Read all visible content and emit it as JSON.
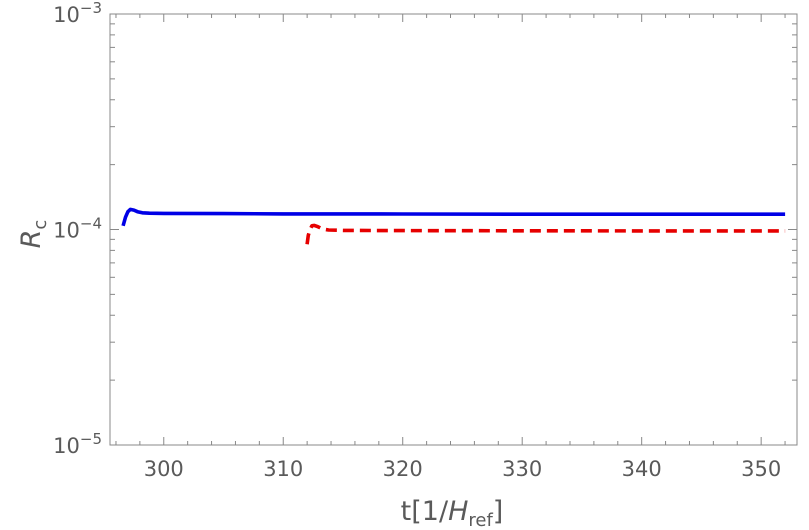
{
  "chart_data": {
    "type": "line",
    "xlabel": {
      "main": "t[1/",
      "var": "H",
      "sub": "ref",
      "close": "]"
    },
    "ylabel": {
      "var": "R",
      "sub": "c"
    },
    "xlim": [
      295.5,
      353
    ],
    "ylim": [
      1e-05,
      0.001
    ],
    "yscale": "log",
    "x_ticks": [
      300,
      310,
      320,
      330,
      340,
      350
    ],
    "x_tick_labels": [
      "300",
      "310",
      "320",
      "330",
      "340",
      "350"
    ],
    "y_ticks": [
      {
        "value": 1e-05,
        "base": "10",
        "exp": "−5"
      },
      {
        "value": 0.0001,
        "base": "10",
        "exp": "−4"
      },
      {
        "value": 0.001,
        "base": "10",
        "exp": "−3"
      }
    ],
    "grid": false,
    "frame": true,
    "series": [
      {
        "color": "#0000e6",
        "dash": "solid",
        "x": [
          296.6,
          296.8,
          297.0,
          297.2,
          297.5,
          297.8,
          298.2,
          298.8,
          300,
          305,
          310,
          320,
          330,
          340,
          352
        ],
        "y": [
          0.000104,
          0.000114,
          0.000121,
          0.000124,
          0.000123,
          0.000121,
          0.0001195,
          0.000119,
          0.0001188,
          0.0001185,
          0.0001182,
          0.000118,
          0.0001178,
          0.0001177,
          0.0001177
        ]
      },
      {
        "color": "#e60000",
        "dash": "dashed",
        "x": [
          312.0,
          312.1,
          312.25,
          312.4,
          312.6,
          312.9,
          313.3,
          313.8,
          315,
          320,
          330,
          340,
          352
        ],
        "y": [
          8.55e-05,
          9.4e-05,
          0.0001,
          0.000104,
          0.0001045,
          0.000103,
          0.0001005,
          9.95e-05,
          9.9e-05,
          9.88e-05,
          9.86e-05,
          9.85e-05,
          9.85e-05
        ]
      }
    ]
  }
}
